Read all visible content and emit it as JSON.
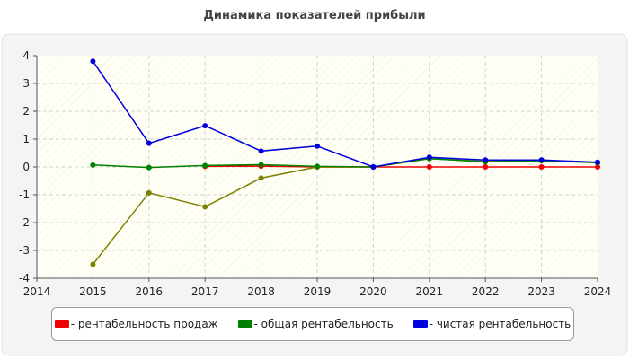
{
  "chart_data": {
    "type": "line",
    "title": "Динамика показателей прибыли",
    "xlabel": "",
    "ylabel": "",
    "x_ticks": [
      "2014",
      "2015",
      "2016",
      "2017",
      "2018",
      "2019",
      "2020",
      "2021",
      "2022",
      "2023",
      "2024"
    ],
    "y_ticks": [
      "4",
      "3",
      "2",
      "1",
      "0",
      "-1",
      "-2",
      "-3",
      "-4"
    ],
    "xlim": [
      2014,
      2024
    ],
    "ylim": [
      -4,
      4
    ],
    "grid": true,
    "legend_position": "bottom",
    "colors": {
      "background": "#f4f4f4",
      "plot_area": "#fffff6",
      "grid": "#d2d2d2"
    },
    "series": [
      {
        "name": "- рентабельность продаж",
        "color": "#ee0000",
        "x": [
          2017,
          2018,
          2019,
          2020,
          2021,
          2022,
          2023,
          2024
        ],
        "values": [
          0.02,
          0.03,
          0.0,
          0.0,
          0.0,
          0.0,
          0.0,
          0.0
        ]
      },
      {
        "name": "",
        "color": "#808000",
        "x": [
          2015,
          2016,
          2017,
          2018,
          2019,
          2020,
          2021,
          2022,
          2023,
          2024
        ],
        "values": [
          -3.5,
          -0.93,
          -1.43,
          -0.4,
          0.0,
          0.0,
          0.3,
          0.2,
          0.25,
          0.15
        ]
      },
      {
        "name": "- общая рентабельность",
        "color": "#008000",
        "x": [
          2015,
          2016,
          2017,
          2018,
          2019,
          2020,
          2021,
          2022,
          2023,
          2024
        ],
        "values": [
          0.07,
          -0.02,
          0.05,
          0.08,
          0.02,
          0.0,
          0.3,
          0.18,
          0.22,
          0.15
        ]
      },
      {
        "name": "- чистая рентабельность",
        "color": "#0000dd",
        "x": [
          2015,
          2016,
          2017,
          2018,
          2019,
          2020,
          2021,
          2022,
          2023,
          2024
        ],
        "values": [
          3.8,
          0.85,
          1.48,
          0.57,
          0.75,
          0.0,
          0.35,
          0.25,
          0.25,
          0.17
        ]
      }
    ]
  }
}
